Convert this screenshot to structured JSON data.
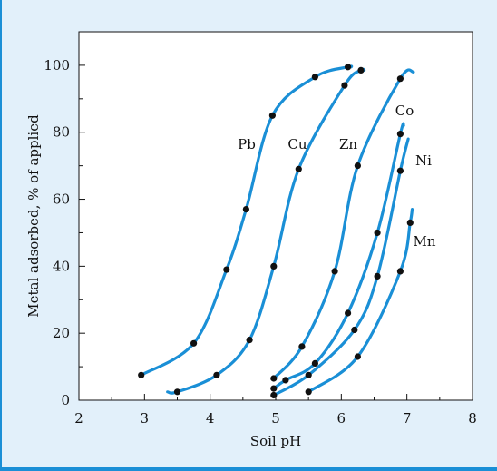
{
  "chart_data": {
    "type": "line",
    "xlabel": "Soil pH",
    "ylabel": "Metal adsorbed, % of applied",
    "xlim": [
      2,
      8
    ],
    "ylim": [
      0,
      110
    ],
    "x_ticks": [
      "2",
      "3",
      "4",
      "5",
      "6",
      "7",
      "8"
    ],
    "y_ticks": [
      "0",
      "20",
      "40",
      "60",
      "80",
      "100"
    ],
    "grid": false,
    "legend": "inline labels",
    "line_color": "#1a8fd6",
    "series": [
      {
        "name": "Pb",
        "points": [
          [
            2.95,
            7.5
          ],
          [
            3.75,
            17
          ],
          [
            4.25,
            39
          ],
          [
            4.55,
            57
          ],
          [
            4.95,
            85
          ],
          [
            5.6,
            96.5
          ],
          [
            6.1,
            99.5
          ]
        ],
        "curve_start": [
          2.95,
          7.5
        ],
        "curve_end": [
          6.15,
          99.5
        ]
      },
      {
        "name": "Cu",
        "points": [
          [
            3.5,
            2.5
          ],
          [
            4.1,
            7.5
          ],
          [
            4.6,
            18
          ],
          [
            4.97,
            40
          ],
          [
            5.35,
            69
          ],
          [
            6.05,
            94
          ],
          [
            6.3,
            98.5
          ]
        ],
        "curve_start": [
          3.35,
          2.5
        ],
        "curve_end": [
          6.35,
          98.5
        ]
      },
      {
        "name": "Zn",
        "points": [
          [
            4.97,
            6.5
          ],
          [
            5.4,
            16
          ],
          [
            5.9,
            38.5
          ],
          [
            6.25,
            70
          ],
          [
            6.9,
            96
          ]
        ],
        "curve_start": [
          4.97,
          6.5
        ],
        "curve_end": [
          7.1,
          98
        ]
      },
      {
        "name": "Co",
        "points": [
          [
            4.97,
            3.5
          ],
          [
            5.15,
            6
          ],
          [
            5.6,
            11
          ],
          [
            6.1,
            26
          ],
          [
            6.55,
            50
          ],
          [
            6.9,
            79.5
          ]
        ],
        "curve_start": [
          4.97,
          3.5
        ],
        "curve_end": [
          6.95,
          82
        ]
      },
      {
        "name": "Ni",
        "points": [
          [
            4.97,
            1.5
          ],
          [
            5.5,
            7.5
          ],
          [
            6.2,
            21
          ],
          [
            6.55,
            37
          ],
          [
            6.9,
            68.5
          ]
        ],
        "curve_start": [
          4.97,
          1.5
        ],
        "curve_end": [
          7.02,
          78
        ]
      },
      {
        "name": "Mn",
        "points": [
          [
            5.5,
            2.5
          ],
          [
            6.25,
            13
          ],
          [
            6.9,
            38.5
          ],
          [
            7.05,
            53
          ]
        ],
        "curve_start": [
          5.5,
          2.5
        ],
        "curve_end": [
          7.08,
          57
        ]
      }
    ]
  }
}
